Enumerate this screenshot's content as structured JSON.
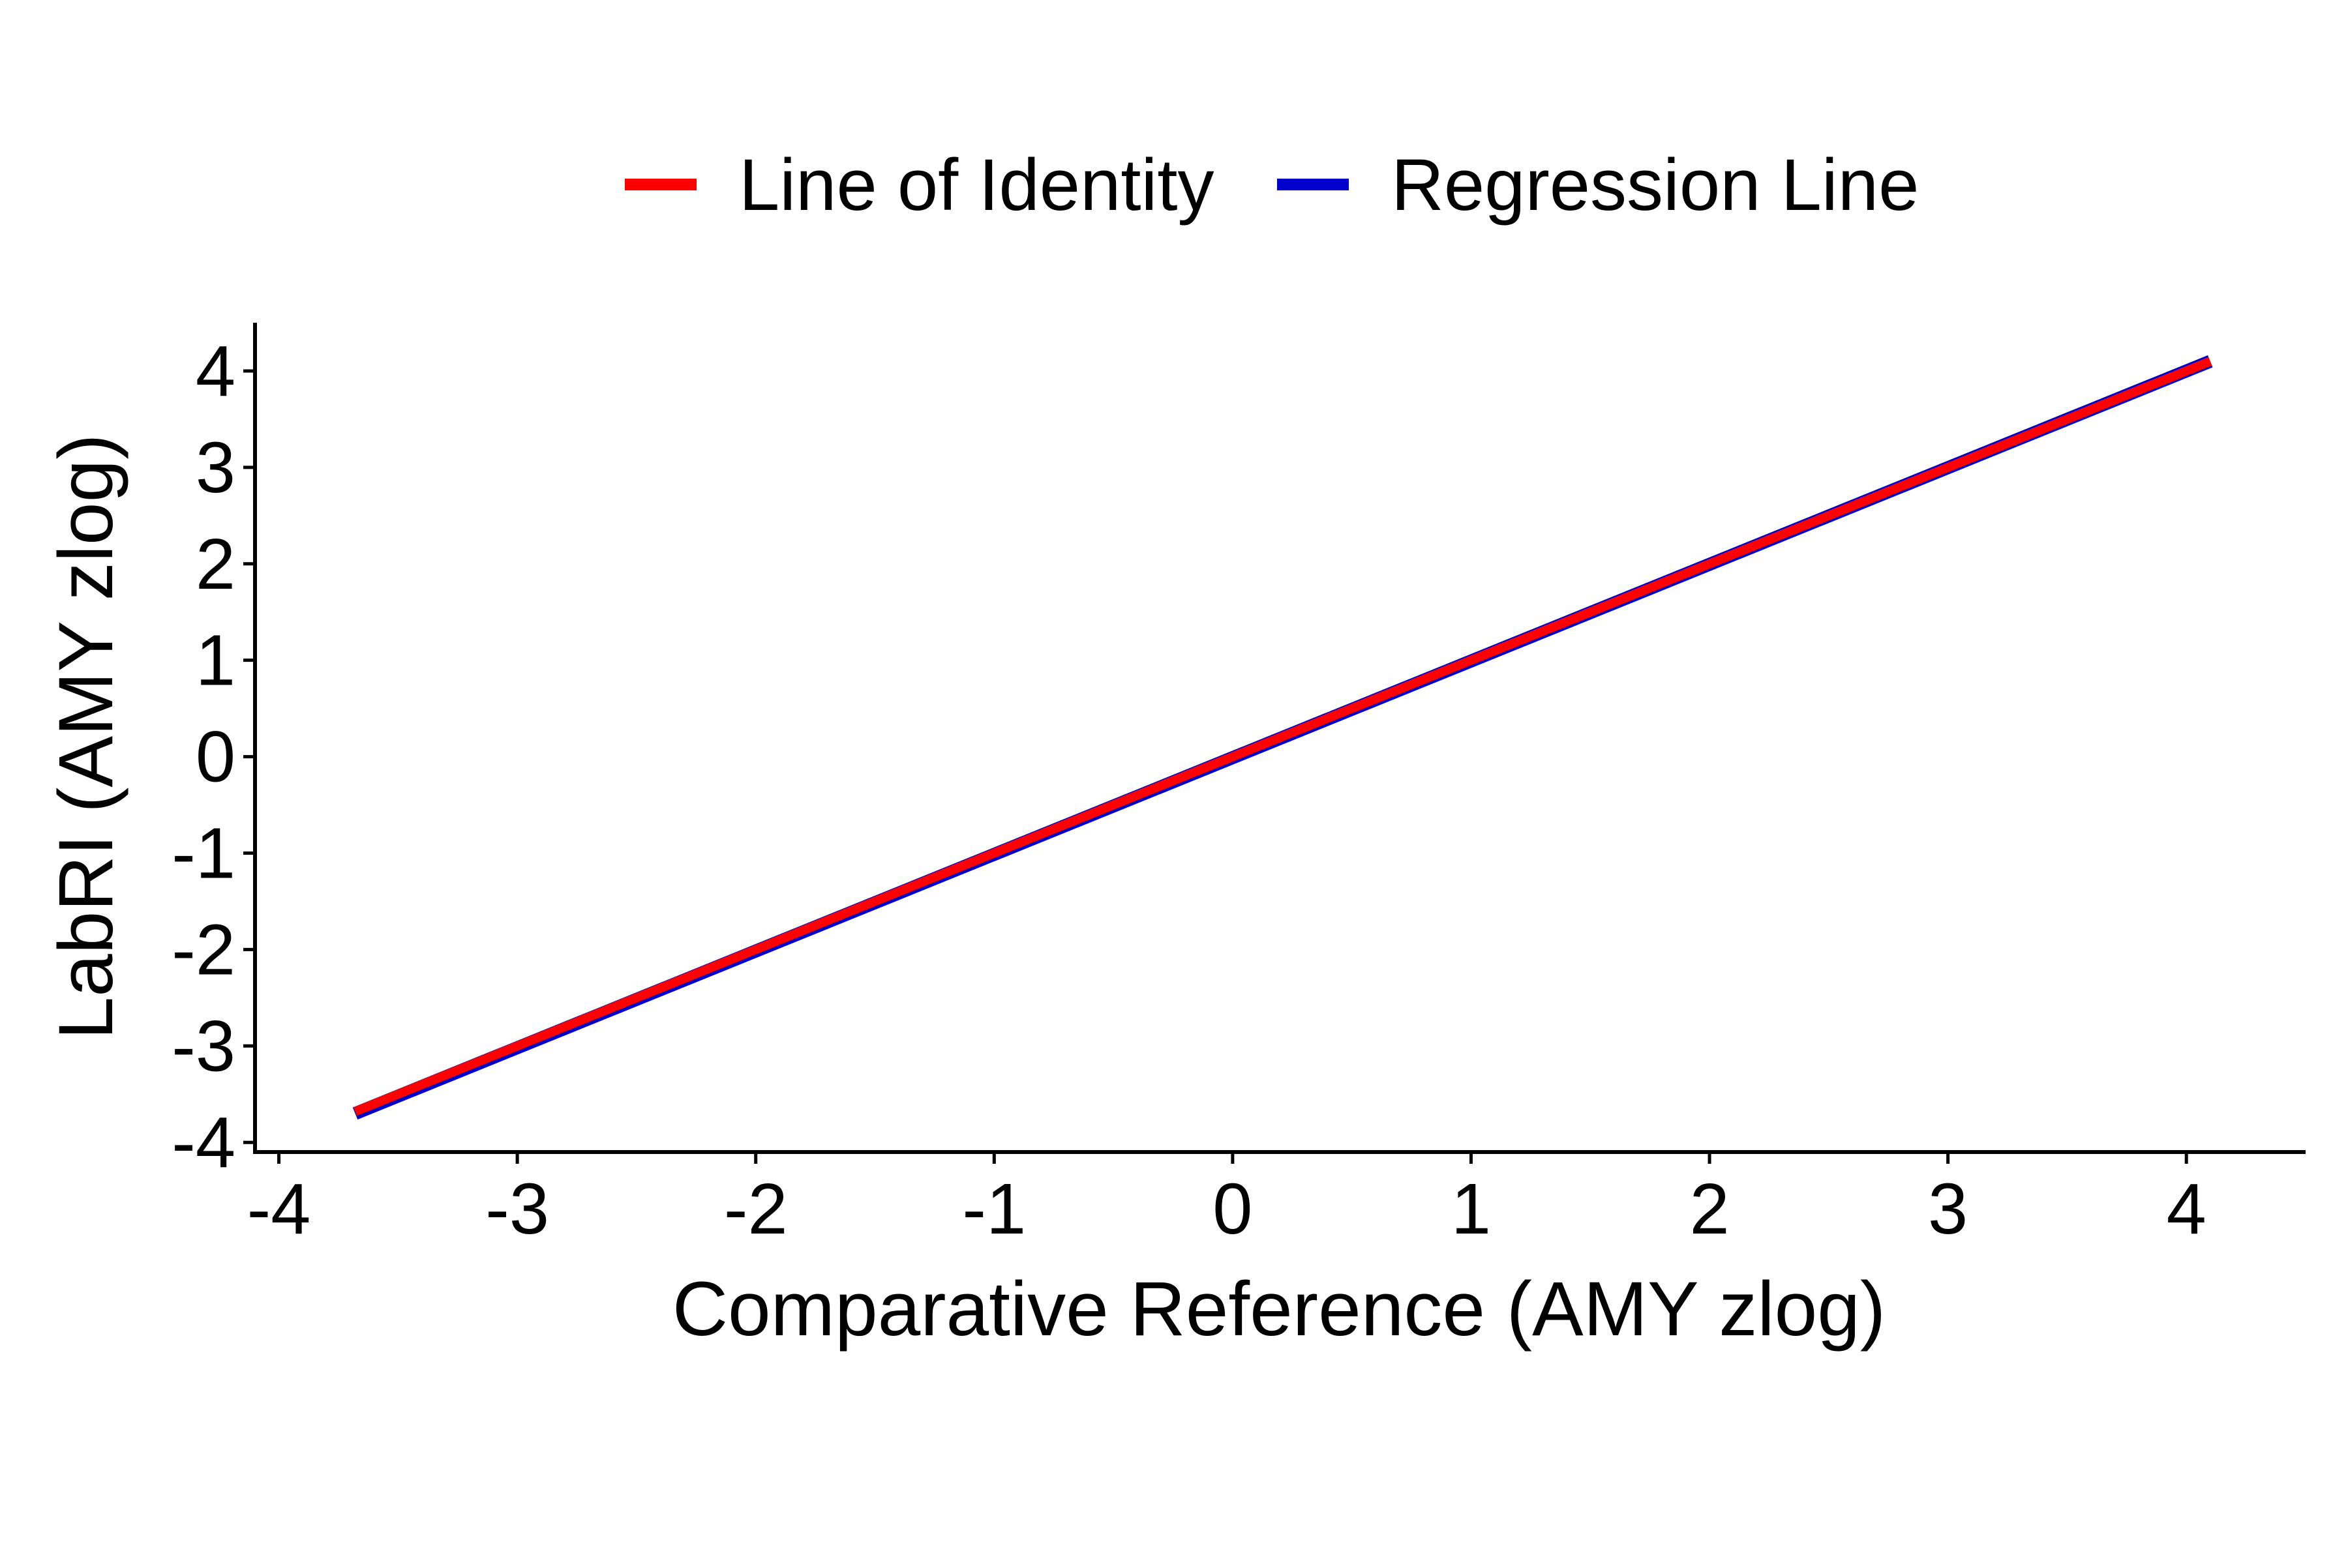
{
  "chart_data": {
    "type": "line",
    "title": "",
    "xlabel": "Comparative Reference (AMY zlog)",
    "ylabel": "LabRI (AMY zlog)",
    "xlim": [
      -4.1,
      4.5
    ],
    "ylim": [
      -4.1,
      4.5
    ],
    "x_ticks": [
      -4,
      -3,
      -2,
      -1,
      0,
      1,
      2,
      3,
      4
    ],
    "y_ticks": [
      -4,
      -3,
      -2,
      -1,
      0,
      1,
      2,
      3,
      4
    ],
    "x_tick_labels": [
      "-4",
      "-3",
      "-2",
      "-1",
      "0",
      "1",
      "2",
      "3",
      "4"
    ],
    "y_tick_labels": [
      "-4",
      "-3",
      "-2",
      "-1",
      "0",
      "1",
      "2",
      "3",
      "4"
    ],
    "grid": false,
    "legend_position": "top",
    "series": [
      {
        "name": "Regression Line",
        "color": "#0000CC",
        "x": [
          -3.68,
          4.1
        ],
        "y": [
          -3.7,
          4.1
        ]
      },
      {
        "name": "Line of Identity",
        "color": "#FF0000",
        "x": [
          -3.68,
          4.1
        ],
        "y": [
          -3.68,
          4.1
        ]
      }
    ],
    "legend_order": [
      "Line of Identity",
      "Regression Line"
    ]
  }
}
